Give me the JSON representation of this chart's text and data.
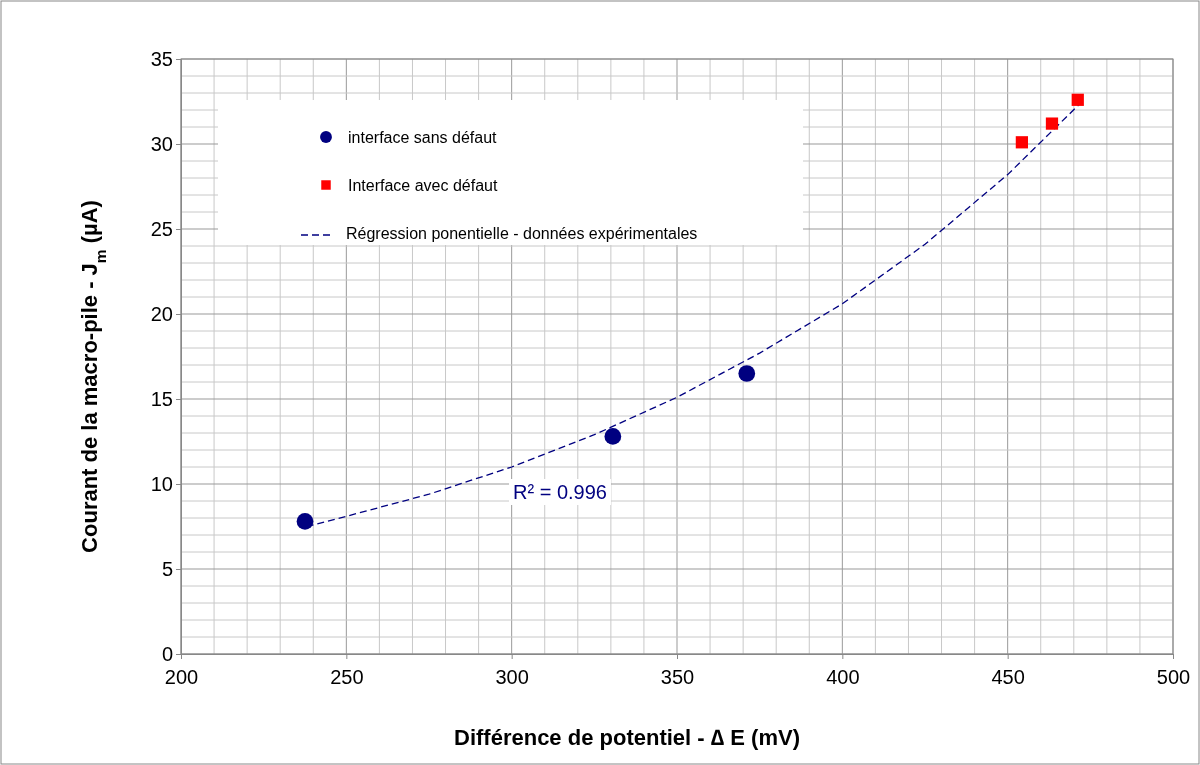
{
  "chart_data": {
    "type": "scatter",
    "xlabel": "Différence de potentiel - ∆ E (mV)",
    "ylabel": "Courant de la macro-pile - J$_{m}$ (µA)",
    "xlim": [
      200,
      500
    ],
    "ylim": [
      0,
      35
    ],
    "xticks": [
      200,
      {
        "value": 210,
        "label": null
      },
      {
        "value": 220,
        "label": null
      },
      {
        "value": 230,
        "label": null
      },
      {
        "value": 240,
        "label": null
      },
      250,
      {
        "value": 260,
        "label": null
      },
      {
        "value": 270,
        "label": null
      },
      {
        "value": 280,
        "label": null
      },
      {
        "value": 290,
        "label": null
      },
      300,
      {
        "value": 310,
        "label": null
      },
      {
        "value": 320,
        "label": null
      },
      {
        "value": 330,
        "label": null
      },
      {
        "value": 340,
        "label": null
      },
      350,
      {
        "value": 360,
        "label": null
      },
      {
        "value": 370,
        "label": null
      },
      {
        "value": 380,
        "label": null
      },
      {
        "value": 390,
        "label": null
      },
      400,
      {
        "value": 410,
        "label": null
      },
      {
        "value": 420,
        "label": null
      },
      {
        "value": 430,
        "label": null
      },
      {
        "value": 440,
        "label": null
      },
      450,
      {
        "value": 460,
        "label": null
      },
      {
        "value": 470,
        "label": null
      },
      {
        "value": 480,
        "label": null
      },
      {
        "value": 490,
        "label": null
      },
      500
    ],
    "yticks": [
      0,
      {
        "value": 1,
        "label": null
      },
      {
        "value": 2,
        "label": null
      },
      {
        "value": 3,
        "label": null
      },
      {
        "value": 4,
        "label": null
      },
      5,
      {
        "value": 6,
        "label": null
      },
      {
        "value": 7,
        "label": null
      },
      {
        "value": 8,
        "label": null
      },
      {
        "value": 9,
        "label": null
      },
      10,
      {
        "value": 11,
        "label": null
      },
      {
        "value": 12,
        "label": null
      },
      {
        "value": 13,
        "label": null
      },
      {
        "value": 14,
        "label": null
      },
      15,
      {
        "value": 16,
        "label": null
      },
      {
        "value": 17,
        "label": null
      },
      {
        "value": 18,
        "label": null
      },
      {
        "value": 19,
        "label": null
      },
      20,
      {
        "value": 21,
        "label": null
      },
      {
        "value": 22,
        "label": null
      },
      {
        "value": 23,
        "label": null
      },
      {
        "value": 24,
        "label": null
      },
      25,
      {
        "value": 26,
        "label": null
      },
      {
        "value": 27,
        "label": null
      },
      {
        "value": 28,
        "label": null
      },
      {
        "value": 29,
        "label": null
      },
      30,
      {
        "value": 31,
        "label": null
      },
      {
        "value": 32,
        "label": null
      },
      {
        "value": 33,
        "label": null
      },
      {
        "value": 34,
        "label": null
      },
      35
    ],
    "grid": true,
    "legend": "top left",
    "series": [
      {
        "name": "interface sans défaut",
        "marker": "circle",
        "color": "#000080",
        "x": [
          237.5,
          330.6,
          371.1
        ],
        "values": [
          7.8,
          12.8,
          16.5
        ]
      },
      {
        "name": "Interface avec défaut",
        "marker": "square",
        "color": "#ff0000",
        "x": [
          454.3,
          463.4,
          471.2
        ],
        "values": [
          30.1,
          31.2,
          32.6
        ]
      },
      {
        "name": "Régression ponentielle - données expérimentales",
        "type": "line",
        "marker": "none",
        "line_style": "dashed",
        "color": "#000080",
        "x": [
          238,
          250,
          275,
          300,
          325,
          350,
          375,
          400,
          425,
          450,
          472
        ],
        "values": [
          7.5,
          8.1,
          9.4,
          11.0,
          12.9,
          15.1,
          17.7,
          20.6,
          24.1,
          28.2,
          32.4
        ]
      }
    ],
    "annotations": [
      "R² = 0.996"
    ]
  }
}
